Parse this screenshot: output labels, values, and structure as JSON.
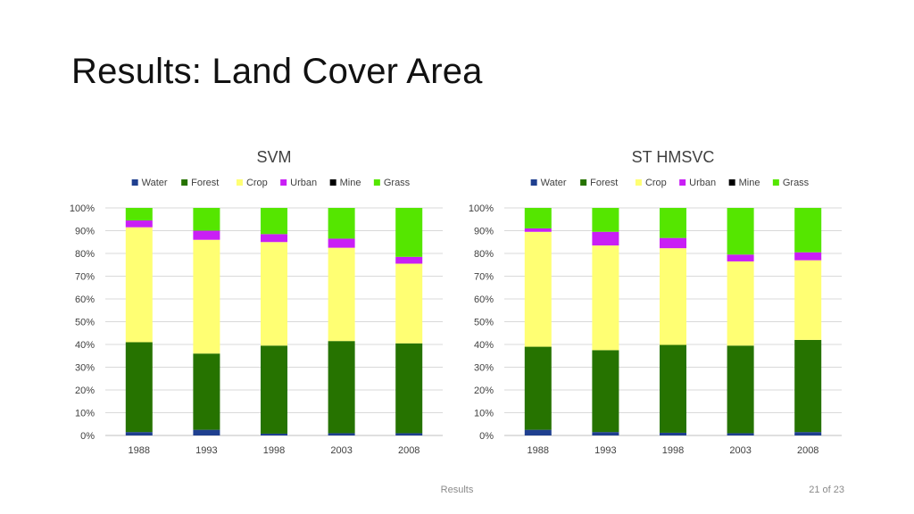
{
  "slide": {
    "title": "Results: Land Cover Area",
    "footer": "Results",
    "page_number": "21 of 23"
  },
  "colors": {
    "Water": "#1f3f8f",
    "Forest": "#267300",
    "Crop": "#ffff73",
    "Urban": "#c91ff5",
    "Mine": "#000000",
    "Grass": "#55e600"
  },
  "chart_data": [
    {
      "type": "bar",
      "stacked": "percent",
      "title": "SVM",
      "categories": [
        "1988",
        "1993",
        "1998",
        "2003",
        "2008"
      ],
      "yticks": [
        "0%",
        "10%",
        "20%",
        "30%",
        "40%",
        "50%",
        "60%",
        "70%",
        "80%",
        "90%",
        "100%"
      ],
      "ylim": [
        0,
        100
      ],
      "legend_position": "top",
      "grid": true,
      "series": [
        {
          "name": "Water",
          "values": [
            1.5,
            2.5,
            0.8,
            1.0,
            1.0
          ]
        },
        {
          "name": "Forest",
          "values": [
            39.5,
            33.5,
            38.7,
            40.5,
            39.5
          ]
        },
        {
          "name": "Crop",
          "values": [
            50.5,
            50.0,
            45.5,
            41.0,
            35.0
          ]
        },
        {
          "name": "Urban",
          "values": [
            3.0,
            4.0,
            3.5,
            4.0,
            3.0
          ]
        },
        {
          "name": "Mine",
          "values": [
            0.0,
            0.0,
            0.0,
            0.0,
            0.0
          ]
        },
        {
          "name": "Grass",
          "values": [
            5.5,
            10.0,
            11.5,
            13.5,
            21.5
          ]
        }
      ]
    },
    {
      "type": "bar",
      "stacked": "percent",
      "title": "ST HMSVC",
      "categories": [
        "1988",
        "1993",
        "1998",
        "2003",
        "2008"
      ],
      "yticks": [
        "0%",
        "10%",
        "20%",
        "30%",
        "40%",
        "50%",
        "60%",
        "70%",
        "80%",
        "90%",
        "100%"
      ],
      "ylim": [
        0,
        100
      ],
      "legend_position": "top",
      "grid": true,
      "series": [
        {
          "name": "Water",
          "values": [
            2.5,
            1.5,
            1.2,
            1.0,
            1.5
          ]
        },
        {
          "name": "Forest",
          "values": [
            36.5,
            36.0,
            38.6,
            38.5,
            40.5
          ]
        },
        {
          "name": "Crop",
          "values": [
            50.5,
            46.0,
            42.5,
            37.0,
            35.0
          ]
        },
        {
          "name": "Urban",
          "values": [
            1.5,
            6.0,
            4.5,
            3.0,
            3.5
          ]
        },
        {
          "name": "Mine",
          "values": [
            0.0,
            0.0,
            0.0,
            0.0,
            0.0
          ]
        },
        {
          "name": "Grass",
          "values": [
            9.0,
            10.5,
            13.2,
            20.5,
            19.5
          ]
        }
      ]
    }
  ]
}
